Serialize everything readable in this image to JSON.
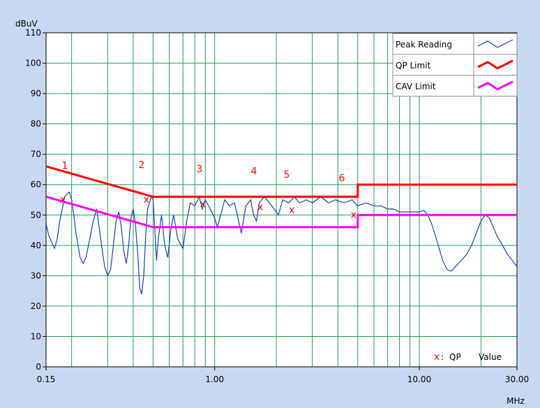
{
  "chart_data": {
    "type": "line",
    "title": "",
    "ylabel": "dBuV",
    "xlabel": "MHz",
    "x_scale": "log",
    "xlim": [
      0.15,
      30
    ],
    "ylim": [
      0,
      110
    ],
    "y_ticks": [
      "0",
      "10",
      "20",
      "30",
      "40",
      "50",
      "60",
      "70",
      "80",
      "90",
      "100",
      "110"
    ],
    "x_ticks": [
      {
        "value": 0.15,
        "label": "0.15"
      },
      {
        "value": 1,
        "label": "1.00"
      },
      {
        "value": 10,
        "label": "10.00"
      },
      {
        "value": 30,
        "label": "30.00"
      }
    ],
    "grid": true,
    "legend_position": "top-right",
    "legend": [
      {
        "label": "Peak Reading",
        "color": "#1a3fbf"
      },
      {
        "label": "QP Limit",
        "color": "#ff0000"
      },
      {
        "label": "CAV Limit",
        "color": "#ff00ff"
      }
    ],
    "annotation": {
      "marker": "x",
      "sep": ":",
      "text1": "QP",
      "text2": "Value"
    },
    "series": [
      {
        "name": "QP Limit",
        "color": "#ff0000",
        "points": [
          [
            0.15,
            66
          ],
          [
            0.5,
            56
          ],
          [
            5,
            56
          ],
          [
            5,
            60
          ],
          [
            30,
            60
          ]
        ]
      },
      {
        "name": "CAV Limit",
        "color": "#ff00ff",
        "points": [
          [
            0.15,
            56
          ],
          [
            0.5,
            46
          ],
          [
            5,
            46
          ],
          [
            5,
            50
          ],
          [
            30,
            50
          ]
        ]
      },
      {
        "name": "Peak Reading",
        "color": "#1a3fbf",
        "points": [
          [
            0.15,
            47
          ],
          [
            0.155,
            43
          ],
          [
            0.16,
            41
          ],
          [
            0.165,
            39
          ],
          [
            0.17,
            42
          ],
          [
            0.175,
            48
          ],
          [
            0.18,
            52
          ],
          [
            0.185,
            56
          ],
          [
            0.19,
            57
          ],
          [
            0.195,
            57.5
          ],
          [
            0.2,
            55
          ],
          [
            0.205,
            50
          ],
          [
            0.21,
            44
          ],
          [
            0.215,
            40
          ],
          [
            0.22,
            36
          ],
          [
            0.228,
            34
          ],
          [
            0.235,
            36
          ],
          [
            0.245,
            42
          ],
          [
            0.255,
            48
          ],
          [
            0.265,
            52
          ],
          [
            0.27,
            48
          ],
          [
            0.28,
            40
          ],
          [
            0.29,
            33
          ],
          [
            0.3,
            30
          ],
          [
            0.31,
            32
          ],
          [
            0.32,
            40
          ],
          [
            0.33,
            48
          ],
          [
            0.34,
            51
          ],
          [
            0.35,
            46
          ],
          [
            0.36,
            38
          ],
          [
            0.37,
            34
          ],
          [
            0.38,
            40
          ],
          [
            0.39,
            49
          ],
          [
            0.4,
            52
          ],
          [
            0.41,
            47
          ],
          [
            0.42,
            38
          ],
          [
            0.43,
            26
          ],
          [
            0.44,
            24
          ],
          [
            0.45,
            30
          ],
          [
            0.46,
            43
          ],
          [
            0.47,
            52
          ],
          [
            0.48,
            54
          ],
          [
            0.49,
            56
          ],
          [
            0.5,
            55
          ],
          [
            0.51,
            45
          ],
          [
            0.52,
            35
          ],
          [
            0.53,
            42
          ],
          [
            0.55,
            50
          ],
          [
            0.57,
            40
          ],
          [
            0.59,
            36
          ],
          [
            0.61,
            45
          ],
          [
            0.63,
            50
          ],
          [
            0.66,
            42
          ],
          [
            0.7,
            39
          ],
          [
            0.73,
            48
          ],
          [
            0.76,
            54
          ],
          [
            0.8,
            53
          ],
          [
            0.84,
            56
          ],
          [
            0.87,
            52
          ],
          [
            0.9,
            55
          ],
          [
            0.95,
            52
          ],
          [
            1.0,
            49
          ],
          [
            1.03,
            46
          ],
          [
            1.07,
            50
          ],
          [
            1.12,
            55
          ],
          [
            1.18,
            53
          ],
          [
            1.25,
            54
          ],
          [
            1.3,
            49
          ],
          [
            1.35,
            44
          ],
          [
            1.42,
            53
          ],
          [
            1.5,
            55
          ],
          [
            1.55,
            50
          ],
          [
            1.6,
            48
          ],
          [
            1.65,
            54
          ],
          [
            1.75,
            56
          ],
          [
            1.85,
            54
          ],
          [
            1.95,
            52
          ],
          [
            2.05,
            50
          ],
          [
            2.15,
            55
          ],
          [
            2.3,
            54
          ],
          [
            2.45,
            56
          ],
          [
            2.6,
            54
          ],
          [
            2.8,
            55
          ],
          [
            3.0,
            54
          ],
          [
            3.3,
            56
          ],
          [
            3.6,
            54
          ],
          [
            3.9,
            55
          ],
          [
            4.3,
            54
          ],
          [
            4.7,
            55
          ],
          [
            5.0,
            53
          ],
          [
            5.5,
            54
          ],
          [
            6.0,
            53
          ],
          [
            6.5,
            53
          ],
          [
            7.0,
            52
          ],
          [
            7.5,
            52
          ],
          [
            8.0,
            51
          ],
          [
            8.5,
            51
          ],
          [
            9.0,
            51
          ],
          [
            9.5,
            51
          ],
          [
            10.0,
            51
          ],
          [
            10.5,
            51.5
          ],
          [
            11.0,
            50
          ],
          [
            11.5,
            47
          ],
          [
            12.0,
            43
          ],
          [
            12.5,
            39
          ],
          [
            13.0,
            35
          ],
          [
            13.7,
            32
          ],
          [
            14.3,
            31.5
          ],
          [
            15.0,
            33
          ],
          [
            16.0,
            35
          ],
          [
            17.0,
            37
          ],
          [
            18.0,
            40
          ],
          [
            19.0,
            44
          ],
          [
            20.0,
            48
          ],
          [
            21.0,
            50
          ],
          [
            22.0,
            49
          ],
          [
            23.0,
            46
          ],
          [
            24.0,
            43
          ],
          [
            25.5,
            40
          ],
          [
            27.0,
            37
          ],
          [
            28.5,
            35
          ],
          [
            30.0,
            33
          ]
        ]
      }
    ],
    "qp_points": [
      {
        "label": "1",
        "x": 0.181,
        "y": 55
      },
      {
        "label": "2",
        "x": 0.464,
        "y": 55
      },
      {
        "label": "3",
        "x": 0.875,
        "y": 53.5
      },
      {
        "label": "4",
        "x": 1.67,
        "y": 52.5
      },
      {
        "label": "5",
        "x": 2.38,
        "y": 51.5
      },
      {
        "label": "6",
        "x": 4.77,
        "y": 50
      }
    ]
  }
}
